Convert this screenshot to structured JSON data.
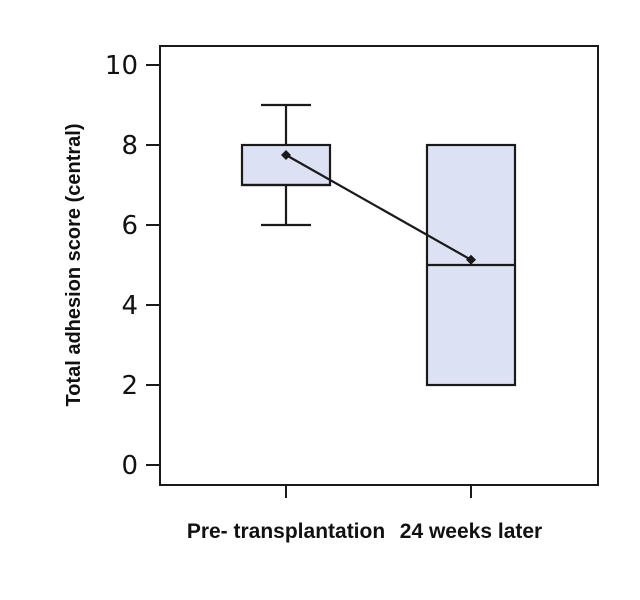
{
  "colors": {
    "box_fill": "#dde1f4",
    "stroke": "#1a1a1a",
    "marker": "#1a1a1a"
  },
  "chart_data": {
    "type": "box",
    "title": "",
    "xlabel": "",
    "ylabel": "Total adhesion score (central)",
    "ylim": [
      0,
      10
    ],
    "yticks": [
      0,
      2,
      4,
      6,
      8,
      10
    ],
    "ytick_labels": [
      "0",
      "2",
      "4",
      "6",
      "8",
      "10"
    ],
    "categories": [
      "Pre- transplantation",
      "24 weeks later"
    ],
    "boxes": [
      {
        "category": "Pre- transplantation",
        "whisker_low": 6,
        "q1": 7,
        "median": 7,
        "q3": 8,
        "whisker_high": 9,
        "mean": 7.75
      },
      {
        "category": "24 weeks later",
        "whisker_low": 2,
        "q1": 2,
        "median": 5,
        "q3": 8,
        "whisker_high": 8,
        "mean": 5.13
      }
    ],
    "mean_line": true,
    "grid": false,
    "legend": "none"
  }
}
